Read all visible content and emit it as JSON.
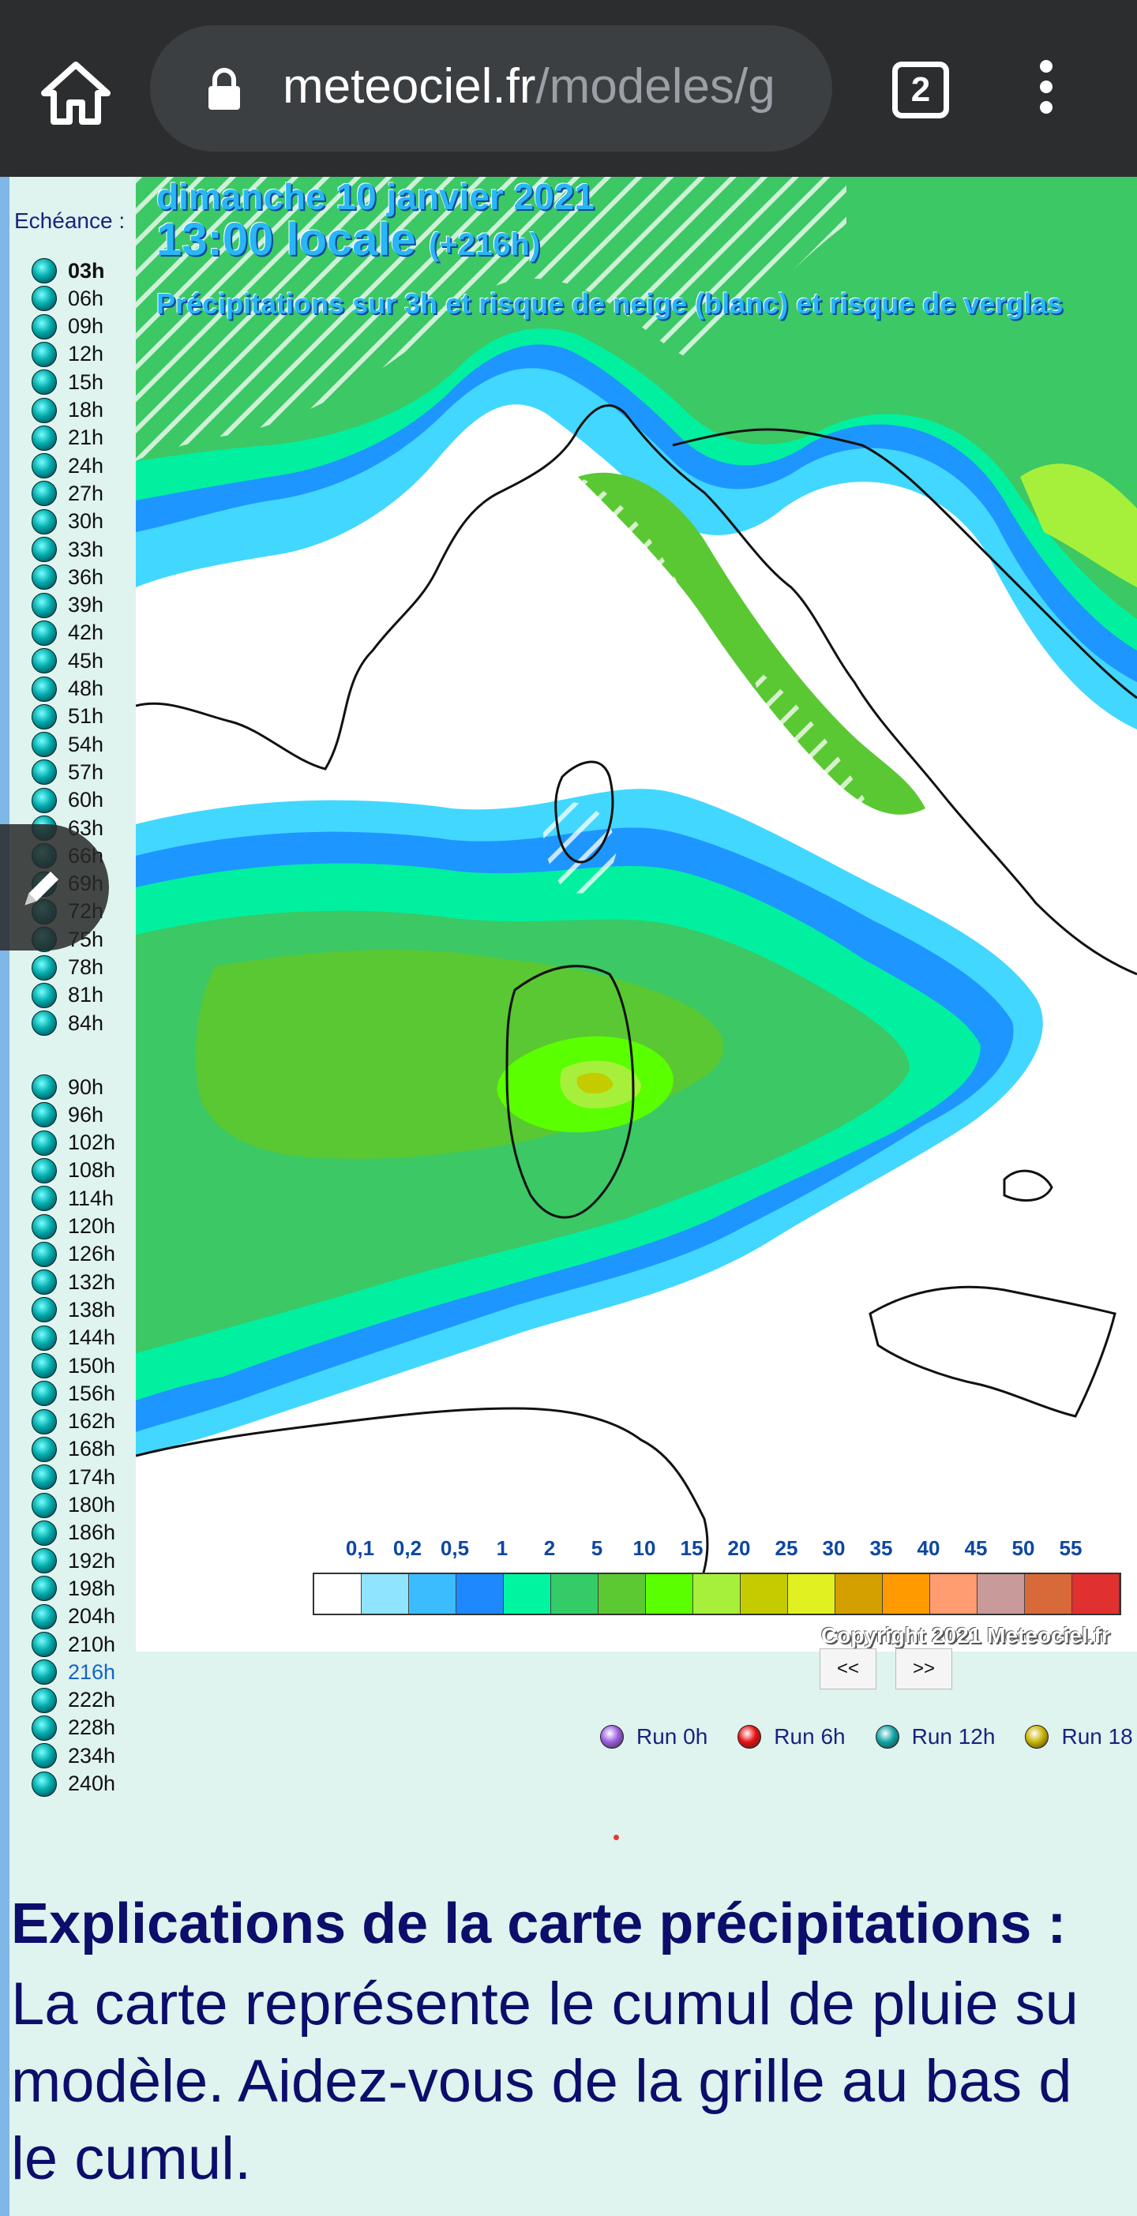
{
  "browser": {
    "url_domain": "meteociel.fr",
    "url_path": "/modeles/g",
    "tab_count": "2"
  },
  "sidebar": {
    "label": "Echéance :",
    "steps_a": [
      "03h",
      "06h",
      "09h",
      "12h",
      "15h",
      "18h",
      "21h",
      "24h",
      "27h",
      "30h",
      "33h",
      "36h",
      "39h",
      "42h",
      "45h",
      "48h",
      "51h",
      "54h",
      "57h",
      "60h",
      "63h",
      "66h",
      "69h",
      "72h",
      "75h",
      "78h",
      "81h",
      "84h"
    ],
    "steps_b": [
      "90h",
      "96h",
      "102h",
      "108h",
      "114h",
      "120h",
      "126h",
      "132h",
      "138h",
      "144h",
      "150h",
      "156h",
      "162h",
      "168h",
      "174h",
      "180h",
      "186h",
      "192h",
      "198h",
      "204h",
      "210h",
      "216h",
      "222h",
      "228h",
      "234h",
      "240h"
    ],
    "active_step": "216h"
  },
  "map": {
    "date": "dimanche 10 janvier 2021",
    "time": "13:00 locale",
    "offset": "(+216h)",
    "description": "Précipitations sur 3h et risque de neige (blanc) et risque de verglas",
    "copyright": "Copyright 2021 Meteociel.fr",
    "legend_labels": [
      "0,1",
      "0,2",
      "0,5",
      "1",
      "2",
      "5",
      "10",
      "15",
      "20",
      "25",
      "30",
      "35",
      "40",
      "45",
      "50",
      "55"
    ],
    "legend_colors": [
      "#ffffff",
      "#8fe4ff",
      "#3bbcff",
      "#1e88ff",
      "#00f5a0",
      "#33cc66",
      "#5cc832",
      "#5aff00",
      "#a6f03c",
      "#c4cc00",
      "#e0f020",
      "#d4a000",
      "#ff9a00",
      "#ff9c70",
      "#c99a9a",
      "#d86a3a",
      "#e03030"
    ]
  },
  "nav": {
    "prev": "<<",
    "next": ">>"
  },
  "runs": [
    {
      "label": "Run 0h",
      "color": "#9c5ce0"
    },
    {
      "label": "Run 6h",
      "color": "#e81010"
    },
    {
      "label": "Run 12h",
      "color": "#11a4a4"
    },
    {
      "label": "Run 18",
      "color": "#c8b400"
    }
  ],
  "explanation": {
    "title": "Explications de la carte précipitations :",
    "line1": "La carte représente le cumul de pluie su",
    "line2": "modèle. Aidez-vous de la grille au bas d",
    "line3": "le cumul."
  }
}
